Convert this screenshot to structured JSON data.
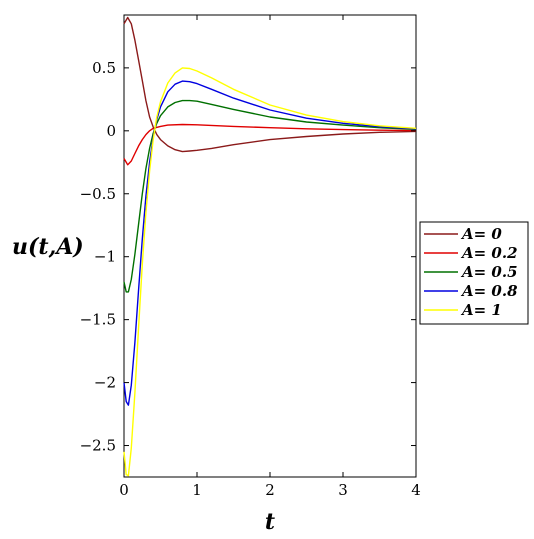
{
  "chart_data": {
    "type": "line",
    "xlabel": "t",
    "ylabel": "u(t,A)",
    "xlim": [
      0,
      4
    ],
    "ylim": [
      -2.75,
      0.92
    ],
    "grid": false,
    "legend_position": "right",
    "x_ticks": [
      0,
      1,
      2,
      3,
      4
    ],
    "x_tick_labels": [
      "0",
      "1",
      "2",
      "3",
      "4"
    ],
    "y_ticks": [
      0.5,
      0,
      -0.5,
      -1,
      -1.5,
      -2,
      -2.5
    ],
    "y_tick_labels": [
      "0.5",
      "0",
      "−0.5",
      "−1",
      "−1.5",
      "−2",
      "−2.5"
    ],
    "series": [
      {
        "name": "A= 0",
        "color": "#8b1a1a",
        "points": [
          [
            0,
            0.85
          ],
          [
            0.05,
            0.9
          ],
          [
            0.1,
            0.85
          ],
          [
            0.15,
            0.72
          ],
          [
            0.2,
            0.56
          ],
          [
            0.25,
            0.4
          ],
          [
            0.3,
            0.24
          ],
          [
            0.35,
            0.11
          ],
          [
            0.4,
            0.03
          ],
          [
            0.45,
            -0.03
          ],
          [
            0.5,
            -0.07
          ],
          [
            0.6,
            -0.12
          ],
          [
            0.7,
            -0.15
          ],
          [
            0.8,
            -0.165
          ],
          [
            0.9,
            -0.16
          ],
          [
            1.0,
            -0.155
          ],
          [
            1.2,
            -0.14
          ],
          [
            1.5,
            -0.11
          ],
          [
            2.0,
            -0.07
          ],
          [
            2.5,
            -0.045
          ],
          [
            3.0,
            -0.025
          ],
          [
            3.5,
            -0.012
          ],
          [
            4.0,
            -0.005
          ]
        ]
      },
      {
        "name": "A= 0.2",
        "color": "#e00000",
        "points": [
          [
            0,
            -0.22
          ],
          [
            0.05,
            -0.27
          ],
          [
            0.1,
            -0.24
          ],
          [
            0.15,
            -0.18
          ],
          [
            0.2,
            -0.12
          ],
          [
            0.25,
            -0.07
          ],
          [
            0.3,
            -0.03
          ],
          [
            0.35,
            0.0
          ],
          [
            0.4,
            0.02
          ],
          [
            0.5,
            0.035
          ],
          [
            0.6,
            0.045
          ],
          [
            0.8,
            0.05
          ],
          [
            1.0,
            0.048
          ],
          [
            1.5,
            0.035
          ],
          [
            2.0,
            0.025
          ],
          [
            2.5,
            0.016
          ],
          [
            3.0,
            0.01
          ],
          [
            3.5,
            0.005
          ],
          [
            4.0,
            0.002
          ]
        ]
      },
      {
        "name": "A= 0.5",
        "color": "#007000",
        "points": [
          [
            0,
            -1.2
          ],
          [
            0.03,
            -1.28
          ],
          [
            0.06,
            -1.28
          ],
          [
            0.1,
            -1.18
          ],
          [
            0.15,
            -0.98
          ],
          [
            0.2,
            -0.74
          ],
          [
            0.25,
            -0.5
          ],
          [
            0.3,
            -0.3
          ],
          [
            0.35,
            -0.14
          ],
          [
            0.4,
            -0.02
          ],
          [
            0.45,
            0.06
          ],
          [
            0.5,
            0.12
          ],
          [
            0.6,
            0.19
          ],
          [
            0.7,
            0.225
          ],
          [
            0.8,
            0.24
          ],
          [
            0.9,
            0.24
          ],
          [
            1.0,
            0.235
          ],
          [
            1.2,
            0.21
          ],
          [
            1.5,
            0.17
          ],
          [
            2.0,
            0.11
          ],
          [
            2.5,
            0.07
          ],
          [
            3.0,
            0.045
          ],
          [
            3.5,
            0.025
          ],
          [
            4.0,
            0.012
          ]
        ]
      },
      {
        "name": "A= 0.8",
        "color": "#0000e0",
        "points": [
          [
            0,
            -2.0
          ],
          [
            0.03,
            -2.15
          ],
          [
            0.06,
            -2.18
          ],
          [
            0.1,
            -2.02
          ],
          [
            0.15,
            -1.68
          ],
          [
            0.2,
            -1.26
          ],
          [
            0.25,
            -0.86
          ],
          [
            0.3,
            -0.52
          ],
          [
            0.35,
            -0.25
          ],
          [
            0.4,
            -0.05
          ],
          [
            0.45,
            0.09
          ],
          [
            0.5,
            0.19
          ],
          [
            0.6,
            0.31
          ],
          [
            0.7,
            0.37
          ],
          [
            0.8,
            0.395
          ],
          [
            0.9,
            0.39
          ],
          [
            1.0,
            0.375
          ],
          [
            1.2,
            0.33
          ],
          [
            1.5,
            0.26
          ],
          [
            2.0,
            0.165
          ],
          [
            2.5,
            0.1
          ],
          [
            3.0,
            0.06
          ],
          [
            3.5,
            0.033
          ],
          [
            4.0,
            0.016
          ]
        ]
      },
      {
        "name": "A= 1",
        "color": "#ffff00",
        "points": [
          [
            0,
            -2.55
          ],
          [
            0.03,
            -2.73
          ],
          [
            0.06,
            -2.74
          ],
          [
            0.1,
            -2.52
          ],
          [
            0.15,
            -2.08
          ],
          [
            0.2,
            -1.56
          ],
          [
            0.25,
            -1.06
          ],
          [
            0.3,
            -0.65
          ],
          [
            0.35,
            -0.32
          ],
          [
            0.4,
            -0.07
          ],
          [
            0.45,
            0.11
          ],
          [
            0.5,
            0.23
          ],
          [
            0.6,
            0.38
          ],
          [
            0.7,
            0.46
          ],
          [
            0.8,
            0.5
          ],
          [
            0.9,
            0.495
          ],
          [
            1.0,
            0.475
          ],
          [
            1.2,
            0.42
          ],
          [
            1.5,
            0.33
          ],
          [
            2.0,
            0.205
          ],
          [
            2.5,
            0.125
          ],
          [
            3.0,
            0.073
          ],
          [
            3.5,
            0.04
          ],
          [
            4.0,
            0.02
          ]
        ]
      }
    ]
  }
}
